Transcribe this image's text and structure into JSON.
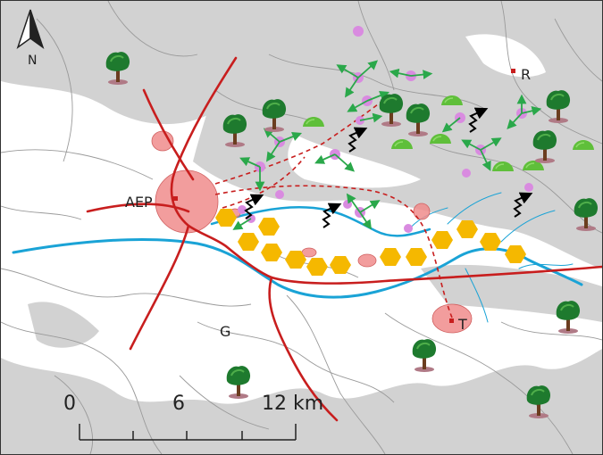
{
  "map": {
    "north_label": "N",
    "place_labels": {
      "AEP": "AEP",
      "R": "R",
      "T": "T",
      "G": "G"
    },
    "scale_bar": {
      "ticks": [
        "0",
        "6",
        "12 km"
      ]
    },
    "colors": {
      "relief_gray": "#d2d2d2",
      "road_red": "#c81e1e",
      "river_blue": "#1aa3d6",
      "urban_pink": "#f08c8c",
      "hexagon_yellow": "#f5b800",
      "node_purple": "#d98be0",
      "arrow_green": "#2aa84a",
      "tree_green": "#1e7a2e",
      "bush_green": "#5fbf3a",
      "boundary_gray": "#9a9a9a"
    },
    "icons": [
      "north-arrow-icon",
      "tree-icon",
      "bush-icon",
      "zigzag-arrow-icon",
      "bidirectional-arrow-icon"
    ]
  }
}
